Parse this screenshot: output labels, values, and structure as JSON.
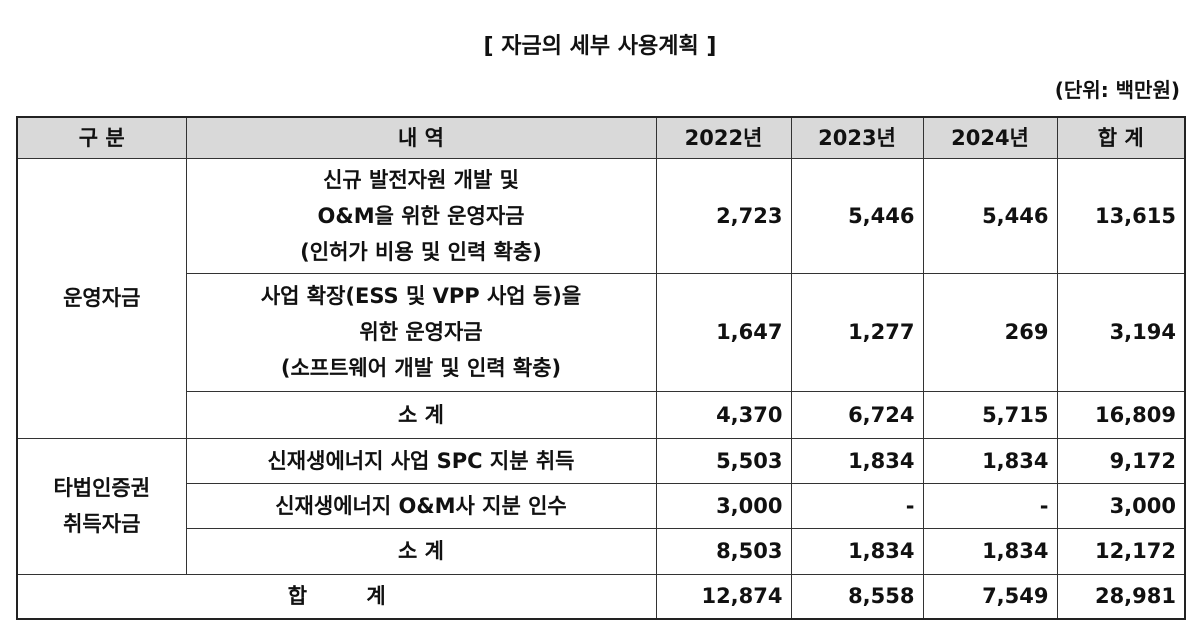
{
  "title": "[ 자금의 세부 사용계획 ]",
  "unit": "(단위: 백만원)",
  "table": {
    "header": [
      "구 분",
      "내 역",
      "2022년",
      "2023년",
      "2024년",
      "합 계"
    ],
    "groups": [
      {
        "name": [
          "운영자금"
        ],
        "rows": [
          {
            "item": [
              "신규 발전자원 개발 및",
              "O&M을 위한 운영자금",
              "(인허가 비용 및 인력 확충)"
            ],
            "values": [
              "2,723",
              "5,446",
              "5,446",
              "13,615"
            ]
          },
          {
            "item": [
              "사업 확장(ESS 및 VPP 사업 등)을",
              "위한 운영자금",
              "(소프트웨어 개발 및 인력 확충)"
            ],
            "values": [
              "1,647",
              "1,277",
              "269",
              "3,194"
            ]
          },
          {
            "item": [
              "소 계"
            ],
            "values": [
              "4,370",
              "6,724",
              "5,715",
              "16,809"
            ]
          }
        ]
      },
      {
        "name": [
          "타법인증권",
          "취득자금"
        ],
        "rows": [
          {
            "item": [
              "신재생에너지 사업 SPC 지분 취득"
            ],
            "values": [
              "5,503",
              "1,834",
              "1,834",
              "9,172"
            ]
          },
          {
            "item": [
              "신재생에너지 O&M사 지분 인수"
            ],
            "values": [
              "3,000",
              "-",
              "-",
              "3,000"
            ]
          },
          {
            "item": [
              "소 계"
            ],
            "values": [
              "8,503",
              "1,834",
              "1,834",
              "12,172"
            ]
          }
        ]
      }
    ],
    "total": {
      "label": "합 계",
      "values": [
        "12,874",
        "8,558",
        "7,549",
        "28,981"
      ]
    }
  }
}
